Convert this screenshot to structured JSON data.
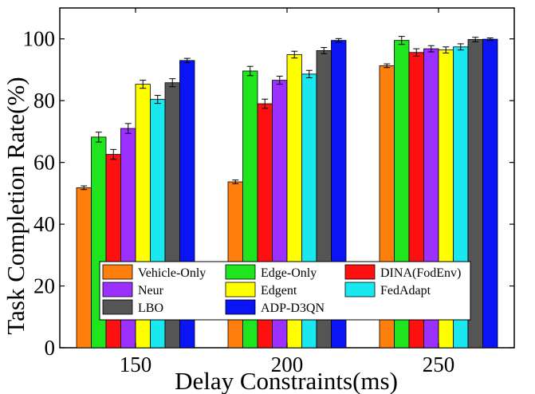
{
  "chart_data": {
    "type": "bar",
    "title": "",
    "xlabel": "Delay Constraints(ms)",
    "ylabel": "Task Completion Rate(%)",
    "ylim": [
      0,
      110
    ],
    "yticks": [
      0,
      20,
      40,
      60,
      80,
      100
    ],
    "categories": [
      "150",
      "200",
      "250"
    ],
    "grid": false,
    "legend_position": "bottom-center",
    "series": [
      {
        "name": "Vehicle-Only",
        "color": "#ff7f0e",
        "values": [
          51.8,
          53.7,
          91.3
        ],
        "errors": [
          0.6,
          0.6,
          0.6
        ]
      },
      {
        "name": "Edge-Only",
        "color": "#1ee51e",
        "values": [
          68.2,
          89.6,
          99.5
        ],
        "errors": [
          1.6,
          1.5,
          1.3
        ]
      },
      {
        "name": "DINA(FodEnv)",
        "color": "#ff1010",
        "values": [
          62.6,
          79.0,
          95.6
        ],
        "errors": [
          1.6,
          1.5,
          1.2
        ]
      },
      {
        "name": "Neur",
        "color": "#9b30ff",
        "values": [
          71.0,
          86.6,
          96.8
        ],
        "errors": [
          1.6,
          1.3,
          1.0
        ]
      },
      {
        "name": "Edgent",
        "color": "#ffff00",
        "values": [
          85.3,
          94.9,
          96.4
        ],
        "errors": [
          1.3,
          1.1,
          1.0
        ]
      },
      {
        "name": "FedAdapt",
        "color": "#1ae8f0",
        "values": [
          80.4,
          88.6,
          97.4
        ],
        "errors": [
          1.3,
          1.2,
          1.0
        ]
      },
      {
        "name": "LBO",
        "color": "#555555",
        "values": [
          85.8,
          96.2,
          99.8
        ],
        "errors": [
          1.3,
          1.0,
          0.7
        ]
      },
      {
        "name": "ADP-D3QN",
        "color": "#0a14f5",
        "values": [
          93.0,
          99.5,
          99.9
        ],
        "errors": [
          0.7,
          0.6,
          0.4
        ]
      }
    ]
  }
}
